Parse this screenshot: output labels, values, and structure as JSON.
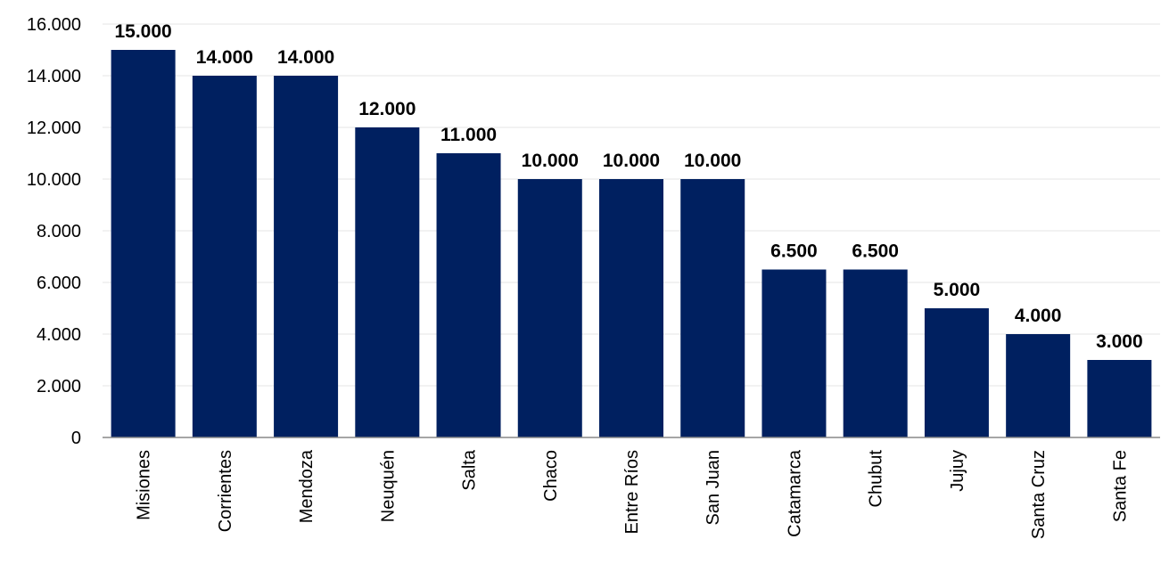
{
  "chart_data": {
    "type": "bar",
    "title": "",
    "xlabel": "",
    "ylabel": "",
    "categories": [
      "Misiones",
      "Corrientes",
      "Mendoza",
      "Neuquén",
      "Salta",
      "Chaco",
      "Entre Ríos",
      "San Juan",
      "Catamarca",
      "Chubut",
      "Jujuy",
      "Santa Cruz",
      "Santa Fe"
    ],
    "values": [
      15000,
      14000,
      14000,
      12000,
      11000,
      10000,
      10000,
      10000,
      6500,
      6500,
      5000,
      4000,
      3000
    ],
    "value_labels": [
      "15.000",
      "14.000",
      "14.000",
      "12.000",
      "11.000",
      "10.000",
      "10.000",
      "10.000",
      "6.500",
      "6.500",
      "5.000",
      "4.000",
      "3.000"
    ],
    "ylim": [
      0,
      16000
    ],
    "yticks": [
      0,
      2000,
      4000,
      6000,
      8000,
      10000,
      12000,
      14000,
      16000
    ],
    "ytick_labels": [
      "0",
      "2.000",
      "4.000",
      "6.000",
      "8.000",
      "10.000",
      "12.000",
      "14.000",
      "16.000"
    ],
    "grid": true,
    "legend": "none",
    "bar_color": "#002060",
    "grid_color": "#e6e6e6",
    "axis_color": "#888888",
    "label_color": "#000000"
  }
}
